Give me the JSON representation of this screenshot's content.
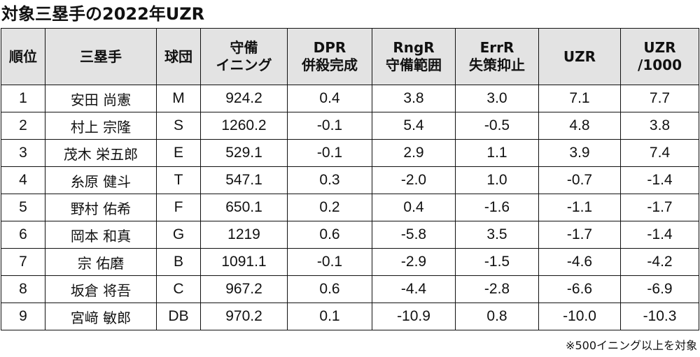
{
  "title": "対象三塁手の2022年UZR",
  "headers": [
    {
      "l1": "順位",
      "l2": ""
    },
    {
      "l1": "三塁手",
      "l2": ""
    },
    {
      "l1": "球団",
      "l2": ""
    },
    {
      "l1": "守備",
      "l2": "イニング"
    },
    {
      "l1": "DPR",
      "l2": "併殺完成"
    },
    {
      "l1": "RngR",
      "l2": "守備範囲"
    },
    {
      "l1": "ErrR",
      "l2": "失策抑止"
    },
    {
      "l1": "UZR",
      "l2": ""
    },
    {
      "l1": "UZR",
      "l2": "/1000"
    }
  ],
  "rows": [
    {
      "rank": "1",
      "player": "安田 尚憲",
      "team": "M",
      "innings": "924.2",
      "dpr": "0.4",
      "rngr": "3.8",
      "errr": "3.0",
      "uzr": "7.1",
      "uzr1000": "7.7"
    },
    {
      "rank": "2",
      "player": "村上 宗隆",
      "team": "S",
      "innings": "1260.2",
      "dpr": "-0.1",
      "rngr": "5.4",
      "errr": "-0.5",
      "uzr": "4.8",
      "uzr1000": "3.8"
    },
    {
      "rank": "3",
      "player": "茂木 栄五郎",
      "team": "E",
      "innings": "529.1",
      "dpr": "-0.1",
      "rngr": "2.9",
      "errr": "1.1",
      "uzr": "3.9",
      "uzr1000": "7.4"
    },
    {
      "rank": "4",
      "player": "糸原 健斗",
      "team": "T",
      "innings": "547.1",
      "dpr": "0.3",
      "rngr": "-2.0",
      "errr": "1.0",
      "uzr": "-0.7",
      "uzr1000": "-1.4"
    },
    {
      "rank": "5",
      "player": "野村 佑希",
      "team": "F",
      "innings": "650.1",
      "dpr": "0.2",
      "rngr": "0.4",
      "errr": "-1.6",
      "uzr": "-1.1",
      "uzr1000": "-1.7"
    },
    {
      "rank": "6",
      "player": "岡本 和真",
      "team": "G",
      "innings": "1219",
      "dpr": "0.6",
      "rngr": "-5.8",
      "errr": "3.5",
      "uzr": "-1.7",
      "uzr1000": "-1.4"
    },
    {
      "rank": "7",
      "player": "宗 佑磨",
      "team": "B",
      "innings": "1091.1",
      "dpr": "-0.1",
      "rngr": "-2.9",
      "errr": "-1.5",
      "uzr": "-4.6",
      "uzr1000": "-4.2"
    },
    {
      "rank": "8",
      "player": "坂倉 将吾",
      "team": "C",
      "innings": "967.2",
      "dpr": "0.6",
      "rngr": "-4.4",
      "errr": "-2.8",
      "uzr": "-6.6",
      "uzr1000": "-6.9"
    },
    {
      "rank": "9",
      "player": "宮﨑 敏郎",
      "team": "DB",
      "innings": "970.2",
      "dpr": "0.1",
      "rngr": "-10.9",
      "errr": "0.8",
      "uzr": "-10.0",
      "uzr1000": "-10.3"
    }
  ],
  "footnote": "※500イニング以上を対象"
}
